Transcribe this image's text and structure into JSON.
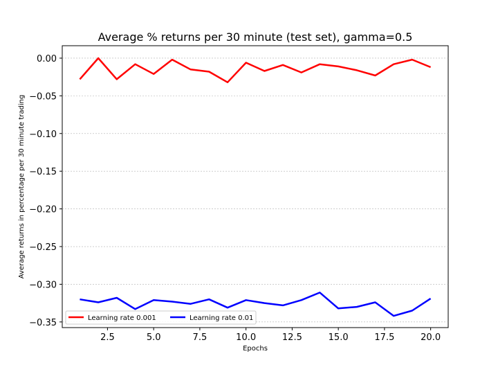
{
  "chart_data": {
    "type": "line",
    "title": "Average % returns per 30 minute (test set), gamma=0.5",
    "xlabel": "Epochs",
    "ylabel": "Average returns in percentage per 30 minute trading",
    "xlim": [
      0.05,
      20.95
    ],
    "ylim": [
      -0.3575,
      0.0165
    ],
    "xticks": [
      2.5,
      5.0,
      7.5,
      10.0,
      12.5,
      15.0,
      17.5,
      20.0
    ],
    "xtick_labels": [
      "2.5",
      "5.0",
      "7.5",
      "10.0",
      "12.5",
      "15.0",
      "17.5",
      "20.0"
    ],
    "yticks": [
      0.0,
      -0.05,
      -0.1,
      -0.15,
      -0.2,
      -0.25,
      -0.3,
      -0.35
    ],
    "ytick_labels": [
      "0.00",
      "−0.05",
      "−0.10",
      "−0.15",
      "−0.20",
      "−0.25",
      "−0.30",
      "−0.35"
    ],
    "grid": "horizontal",
    "legend_position": "lower-left",
    "x": [
      1,
      2,
      3,
      4,
      5,
      6,
      7,
      8,
      9,
      10,
      11,
      12,
      13,
      14,
      15,
      16,
      17,
      18,
      19,
      20
    ],
    "series": [
      {
        "name": "Learning rate 0.001",
        "color": "#ff0000",
        "values": [
          -0.028,
          0.0,
          -0.028,
          -0.008,
          -0.021,
          -0.002,
          -0.015,
          -0.018,
          -0.032,
          -0.006,
          -0.017,
          -0.009,
          -0.019,
          -0.008,
          -0.011,
          -0.016,
          -0.023,
          -0.008,
          -0.002,
          -0.012
        ]
      },
      {
        "name": "Learning rate 0.01",
        "color": "#0000ff",
        "values": [
          -0.32,
          -0.324,
          -0.318,
          -0.333,
          -0.321,
          -0.323,
          -0.326,
          -0.32,
          -0.331,
          -0.321,
          -0.325,
          -0.328,
          -0.321,
          -0.311,
          -0.332,
          -0.33,
          -0.324,
          -0.342,
          -0.335,
          -0.319
        ]
      }
    ]
  }
}
